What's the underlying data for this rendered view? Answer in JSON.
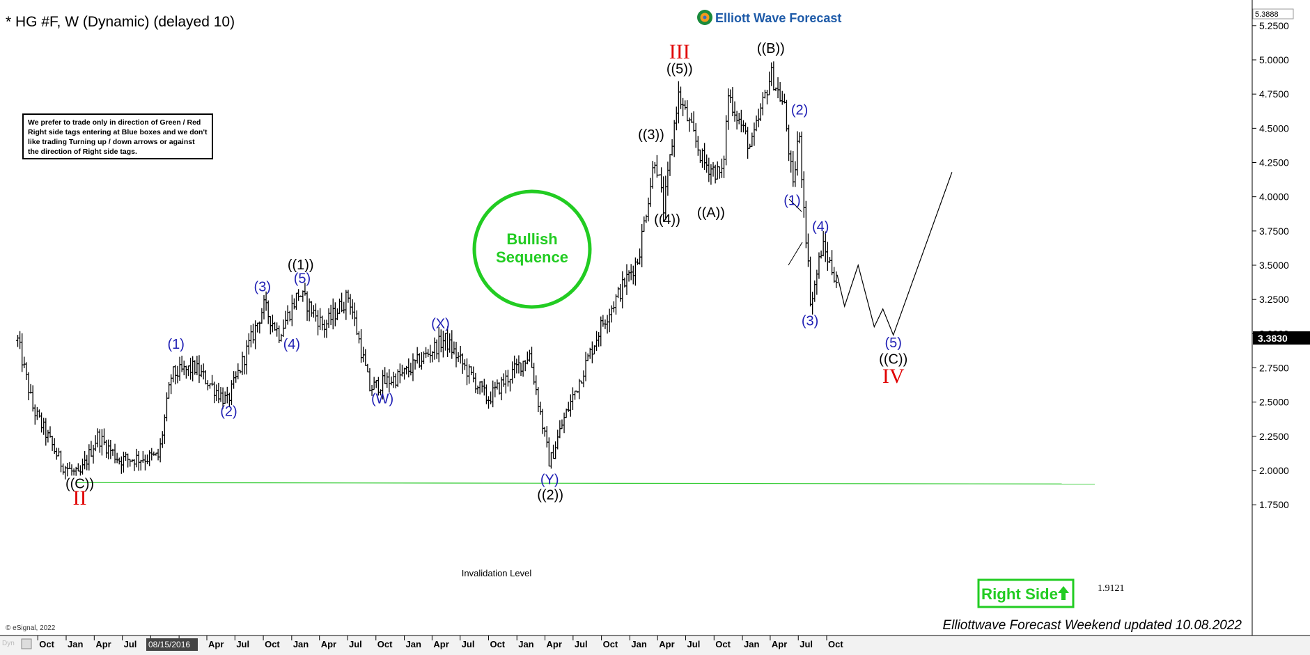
{
  "header": {
    "symbol_title": "* HG #F, W (Dynamic) (delayed 10)",
    "brand": "Elliott Wave Forecast"
  },
  "note": {
    "lines": [
      "We prefer to trade only in direction of Green / Red",
      "Right side tags entering at Blue boxes and we don't",
      "like trading Turning up / down arrows or against",
      "the direction of Right side tags."
    ]
  },
  "badges": {
    "bullish_line1": "Bullish",
    "bullish_line2": "Sequence",
    "right_side": "Right Side",
    "invalidation_label": "Invalidation Level",
    "invalidation_value": "1.9121",
    "footer_copyright": "© eSignal, 2022",
    "footer_update": "Elliottwave Forecast Weekend updated 10.08.2022",
    "dyn": "Dyn",
    "top_price_box": "5.3888",
    "last_price_box": "3.3830",
    "date_box": "08/15/2016"
  },
  "colors": {
    "blue": "#1f1fb4",
    "red": "#e00000",
    "green": "#22cc22",
    "invalidation": "#33cc33",
    "bars": "#000000"
  },
  "chart_data": {
    "type": "ohlc",
    "timeframe": "weekly",
    "y_axis": {
      "range": [
        1.65,
        5.42
      ],
      "ticks": [
        "1.7500",
        "2.0000",
        "2.2500",
        "2.5000",
        "2.7500",
        "3.0000",
        "3.2500",
        "3.5000",
        "3.7500",
        "4.0000",
        "4.2500",
        "4.5000",
        "4.7500",
        "5.0000",
        "5.2500"
      ]
    },
    "x_axis": {
      "ticks": [
        "Oct",
        "Jan",
        "Apr",
        "Jul",
        "Oct",
        "Jan",
        "Apr",
        "Jul",
        "Oct",
        "Jan",
        "Apr",
        "Jul",
        "Oct",
        "Jan",
        "Apr",
        "Jul",
        "Oct",
        "Jan",
        "Apr",
        "Jul",
        "Oct",
        "Jan",
        "Apr",
        "Jul",
        "Oct",
        "Jan",
        "Apr",
        "Jul",
        "Oct"
      ],
      "tick_dates": [
        "2015-10-01",
        "2016-01-01",
        "2016-04-01",
        "2016-07-01",
        "2016-10-01",
        "2017-01-01",
        "2017-04-01",
        "2017-07-01",
        "2017-10-01",
        "2018-01-01",
        "2018-04-01",
        "2018-07-01",
        "2018-10-01",
        "2019-01-01",
        "2019-04-01",
        "2019-07-01",
        "2019-10-01",
        "2020-01-01",
        "2020-04-01",
        "2020-07-01",
        "2020-10-01",
        "2021-01-01",
        "2021-04-01",
        "2021-07-01",
        "2021-10-01",
        "2022-01-01",
        "2022-04-01",
        "2022-07-01",
        "2022-10-01"
      ],
      "range": [
        "2015-07-01",
        "2022-10-08"
      ]
    },
    "price_path": [
      {
        "date": "2015-07-01",
        "price": 2.95
      },
      {
        "date": "2015-08-20",
        "price": 2.45
      },
      {
        "date": "2015-11-20",
        "price": 2.05
      },
      {
        "date": "2016-01-15",
        "price": 1.95
      },
      {
        "date": "2016-03-15",
        "price": 2.25
      },
      {
        "date": "2016-05-25",
        "price": 2.08
      },
      {
        "date": "2016-09-30",
        "price": 2.1
      },
      {
        "date": "2016-11-10",
        "price": 2.7
      },
      {
        "date": "2017-01-25",
        "price": 2.75
      },
      {
        "date": "2017-05-10",
        "price": 2.5
      },
      {
        "date": "2017-09-05",
        "price": 3.2
      },
      {
        "date": "2017-10-25",
        "price": 3.0
      },
      {
        "date": "2017-12-28",
        "price": 3.3
      },
      {
        "date": "2018-03-20",
        "price": 3.05
      },
      {
        "date": "2018-06-08",
        "price": 3.28
      },
      {
        "date": "2018-08-15",
        "price": 2.6
      },
      {
        "date": "2018-12-01",
        "price": 2.7
      },
      {
        "date": "2019-04-15",
        "price": 2.96
      },
      {
        "date": "2019-09-01",
        "price": 2.52
      },
      {
        "date": "2020-01-15",
        "price": 2.85
      },
      {
        "date": "2020-03-20",
        "price": 2.05
      },
      {
        "date": "2020-05-01",
        "price": 2.35
      },
      {
        "date": "2020-09-01",
        "price": 3.05
      },
      {
        "date": "2021-01-01",
        "price": 3.55
      },
      {
        "date": "2021-02-25",
        "price": 4.3
      },
      {
        "date": "2021-03-25",
        "price": 3.9
      },
      {
        "date": "2021-05-10",
        "price": 4.75
      },
      {
        "date": "2021-08-01",
        "price": 4.25
      },
      {
        "date": "2021-10-01",
        "price": 4.15
      },
      {
        "date": "2021-10-20",
        "price": 4.75
      },
      {
        "date": "2022-01-01",
        "price": 4.35
      },
      {
        "date": "2022-03-07",
        "price": 4.9
      },
      {
        "date": "2022-04-20",
        "price": 4.65
      },
      {
        "date": "2022-05-18",
        "price": 4.05
      },
      {
        "date": "2022-06-05",
        "price": 4.5
      },
      {
        "date": "2022-07-15",
        "price": 3.2
      },
      {
        "date": "2022-08-20",
        "price": 3.65
      },
      {
        "date": "2022-10-08",
        "price": 3.38
      }
    ],
    "projection": [
      {
        "date": "2022-10-08",
        "price": 3.43
      },
      {
        "date": "2022-11-01",
        "price": 3.2
      },
      {
        "date": "2022-12-15",
        "price": 3.5
      },
      {
        "date": "2023-02-05",
        "price": 3.05
      },
      {
        "date": "2023-03-05",
        "price": 3.18
      },
      {
        "date": "2023-04-08",
        "price": 2.99
      },
      {
        "date": "2023-10-15",
        "price": 4.18
      }
    ],
    "invalidation_level": 1.9121,
    "last_price": 3.383,
    "wave_labels": [
      {
        "text": "((C))",
        "date": "2016-01-18",
        "price": 1.87,
        "color": "black"
      },
      {
        "text": "II",
        "date": "2016-01-18",
        "price": 1.75,
        "color": "red"
      },
      {
        "text": "(1)",
        "date": "2016-11-25",
        "price": 2.89,
        "color": "blue"
      },
      {
        "text": "(2)",
        "date": "2017-05-15",
        "price": 2.4,
        "color": "blue"
      },
      {
        "text": "(3)",
        "date": "2017-09-01",
        "price": 3.31,
        "color": "blue"
      },
      {
        "text": "(4)",
        "date": "2017-12-05",
        "price": 2.89,
        "color": "blue"
      },
      {
        "text": "(5)",
        "date": "2018-01-08",
        "price": 3.37,
        "color": "blue"
      },
      {
        "text": "((1))",
        "date": "2018-01-03",
        "price": 3.47,
        "color": "black"
      },
      {
        "text": "(W)",
        "date": "2018-09-25",
        "price": 2.49,
        "color": "blue"
      },
      {
        "text": "(X)",
        "date": "2019-04-01",
        "price": 3.04,
        "color": "blue"
      },
      {
        "text": "(Y)",
        "date": "2020-03-20",
        "price": 1.9,
        "color": "blue"
      },
      {
        "text": "((2))",
        "date": "2020-03-22",
        "price": 1.79,
        "color": "black"
      },
      {
        "text": "((3))",
        "date": "2021-02-12",
        "price": 4.42,
        "color": "black"
      },
      {
        "text": "((4))",
        "date": "2021-04-05",
        "price": 3.8,
        "color": "black"
      },
      {
        "text": "((5))",
        "date": "2021-05-15",
        "price": 4.9,
        "color": "black"
      },
      {
        "text": "III",
        "date": "2021-05-15",
        "price": 5.01,
        "color": "red"
      },
      {
        "text": "((A))",
        "date": "2021-08-25",
        "price": 3.85,
        "color": "black"
      },
      {
        "text": "((B))",
        "date": "2022-03-07",
        "price": 5.05,
        "color": "black"
      },
      {
        "text": "(2)",
        "date": "2022-06-08",
        "price": 4.6,
        "color": "blue"
      },
      {
        "text": "(1)",
        "date": "2022-05-15",
        "price": 3.94,
        "color": "blue"
      },
      {
        "text": "(3)",
        "date": "2022-07-12",
        "price": 3.06,
        "color": "blue"
      },
      {
        "text": "(4)",
        "date": "2022-08-15",
        "price": 3.75,
        "color": "blue"
      },
      {
        "text": "(5)",
        "date": "2023-04-08",
        "price": 2.9,
        "color": "blue"
      },
      {
        "text": "((C))",
        "date": "2023-04-08",
        "price": 2.78,
        "color": "black"
      },
      {
        "text": "IV",
        "date": "2023-04-08",
        "price": 2.64,
        "color": "red"
      }
    ]
  }
}
